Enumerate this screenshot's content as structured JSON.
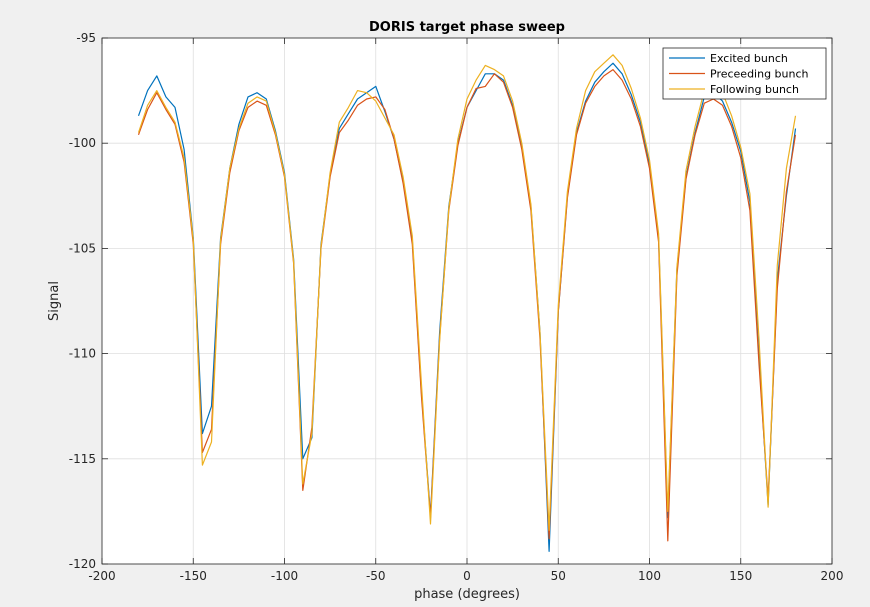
{
  "chart_data": {
    "type": "line",
    "title": "DORIS target phase sweep",
    "xlabel": "phase (degrees)",
    "ylabel": "Signal",
    "xlim": [
      -200,
      200
    ],
    "ylim": [
      -120,
      -95
    ],
    "xticks": [
      -200,
      -150,
      -100,
      -50,
      0,
      50,
      100,
      150,
      200
    ],
    "yticks": [
      -120,
      -115,
      -110,
      -105,
      -100,
      -95
    ],
    "grid": true,
    "legend_position": "top-right",
    "x": [
      -180,
      -175,
      -170,
      -165,
      -160,
      -155,
      -150,
      -145,
      -140,
      -135,
      -130,
      -125,
      -120,
      -115,
      -110,
      -105,
      -100,
      -95,
      -90,
      -85,
      -80,
      -75,
      -70,
      -65,
      -60,
      -55,
      -50,
      -45,
      -40,
      -35,
      -30,
      -25,
      -20,
      -15,
      -10,
      -5,
      0,
      5,
      10,
      15,
      20,
      25,
      30,
      35,
      40,
      45,
      50,
      55,
      60,
      65,
      70,
      75,
      80,
      85,
      90,
      95,
      100,
      105,
      110,
      115,
      120,
      125,
      130,
      135,
      140,
      145,
      150,
      155,
      160,
      165,
      170,
      175,
      180
    ],
    "series": [
      {
        "name": "Excited bunch",
        "color": "#0072BD",
        "values": [
          -98.7,
          -97.5,
          -96.8,
          -97.8,
          -98.3,
          -100.3,
          -104.5,
          -113.8,
          -112.5,
          -104.5,
          -101.2,
          -99.1,
          -97.8,
          -97.6,
          -97.9,
          -99.4,
          -101.4,
          -105.5,
          -115,
          -114,
          -104.8,
          -101.5,
          -99.3,
          -98.6,
          -97.9,
          -97.6,
          -97.3,
          -98.5,
          -99.8,
          -101.8,
          -104.6,
          -111.8,
          -117.7,
          -109,
          -103,
          -100,
          -98.3,
          -97.5,
          -96.7,
          -96.7,
          -97,
          -98.2,
          -100.1,
          -103,
          -109,
          -119.4,
          -108,
          -102.5,
          -99.5,
          -98,
          -97.1,
          -96.6,
          -96.2,
          -96.7,
          -97.7,
          -99,
          -101,
          -104.5,
          -117.8,
          -106,
          -101.6,
          -99.5,
          -97.8,
          -97.6,
          -98,
          -99,
          -100.4,
          -102.8,
          -110.1,
          -117.2,
          -106.5,
          -102.5,
          -99.3
        ]
      },
      {
        "name": "Preceeding bunch",
        "color": "#D95319",
        "values": [
          -99.6,
          -98.4,
          -97.6,
          -98.4,
          -99.1,
          -100.9,
          -104.8,
          -114.7,
          -113.6,
          -104.8,
          -101.4,
          -99.4,
          -98.3,
          -98,
          -98.2,
          -99.6,
          -101.6,
          -105.7,
          -116.5,
          -113.5,
          -105,
          -101.6,
          -99.5,
          -98.9,
          -98.2,
          -97.9,
          -97.8,
          -98.4,
          -99.8,
          -101.9,
          -104.8,
          -112,
          -117.8,
          -109.3,
          -103.2,
          -100.1,
          -98.3,
          -97.4,
          -97.3,
          -96.7,
          -97.1,
          -98.3,
          -100.3,
          -103.2,
          -109.3,
          -118.8,
          -108,
          -102.6,
          -99.6,
          -98.1,
          -97.3,
          -96.8,
          -96.5,
          -97,
          -97.9,
          -99.2,
          -101.2,
          -104.7,
          -118.9,
          -106.3,
          -101.7,
          -99.6,
          -98.1,
          -97.9,
          -98.2,
          -99.2,
          -100.7,
          -103.2,
          -110.5,
          -116.9,
          -106.9,
          -102.3,
          -99.6
        ]
      },
      {
        "name": "Following bunch",
        "color": "#EDB120",
        "values": [
          -99.5,
          -98.2,
          -97.5,
          -98.3,
          -99,
          -100.7,
          -104.6,
          -115.3,
          -114.2,
          -104.6,
          -101.2,
          -99.3,
          -98.1,
          -97.8,
          -98,
          -99.5,
          -101.5,
          -105.6,
          -116.2,
          -113.8,
          -104.9,
          -101.4,
          -99,
          -98.3,
          -97.5,
          -97.6,
          -98,
          -98.8,
          -99.6,
          -101.6,
          -104.4,
          -111.4,
          -118.1,
          -109.4,
          -103.1,
          -99.8,
          -97.9,
          -97,
          -96.3,
          -96.5,
          -96.8,
          -98,
          -100,
          -102.9,
          -109,
          -118.4,
          -107.7,
          -102.3,
          -99.3,
          -97.5,
          -96.6,
          -96.2,
          -95.8,
          -96.3,
          -97.4,
          -98.8,
          -100.8,
          -104.3,
          -117.5,
          -105.9,
          -101.3,
          -99.2,
          -97.5,
          -97.3,
          -97.6,
          -98.7,
          -100.2,
          -102.4,
          -109.3,
          -117.3,
          -105.8,
          -101.2,
          -98.7
        ]
      }
    ]
  }
}
